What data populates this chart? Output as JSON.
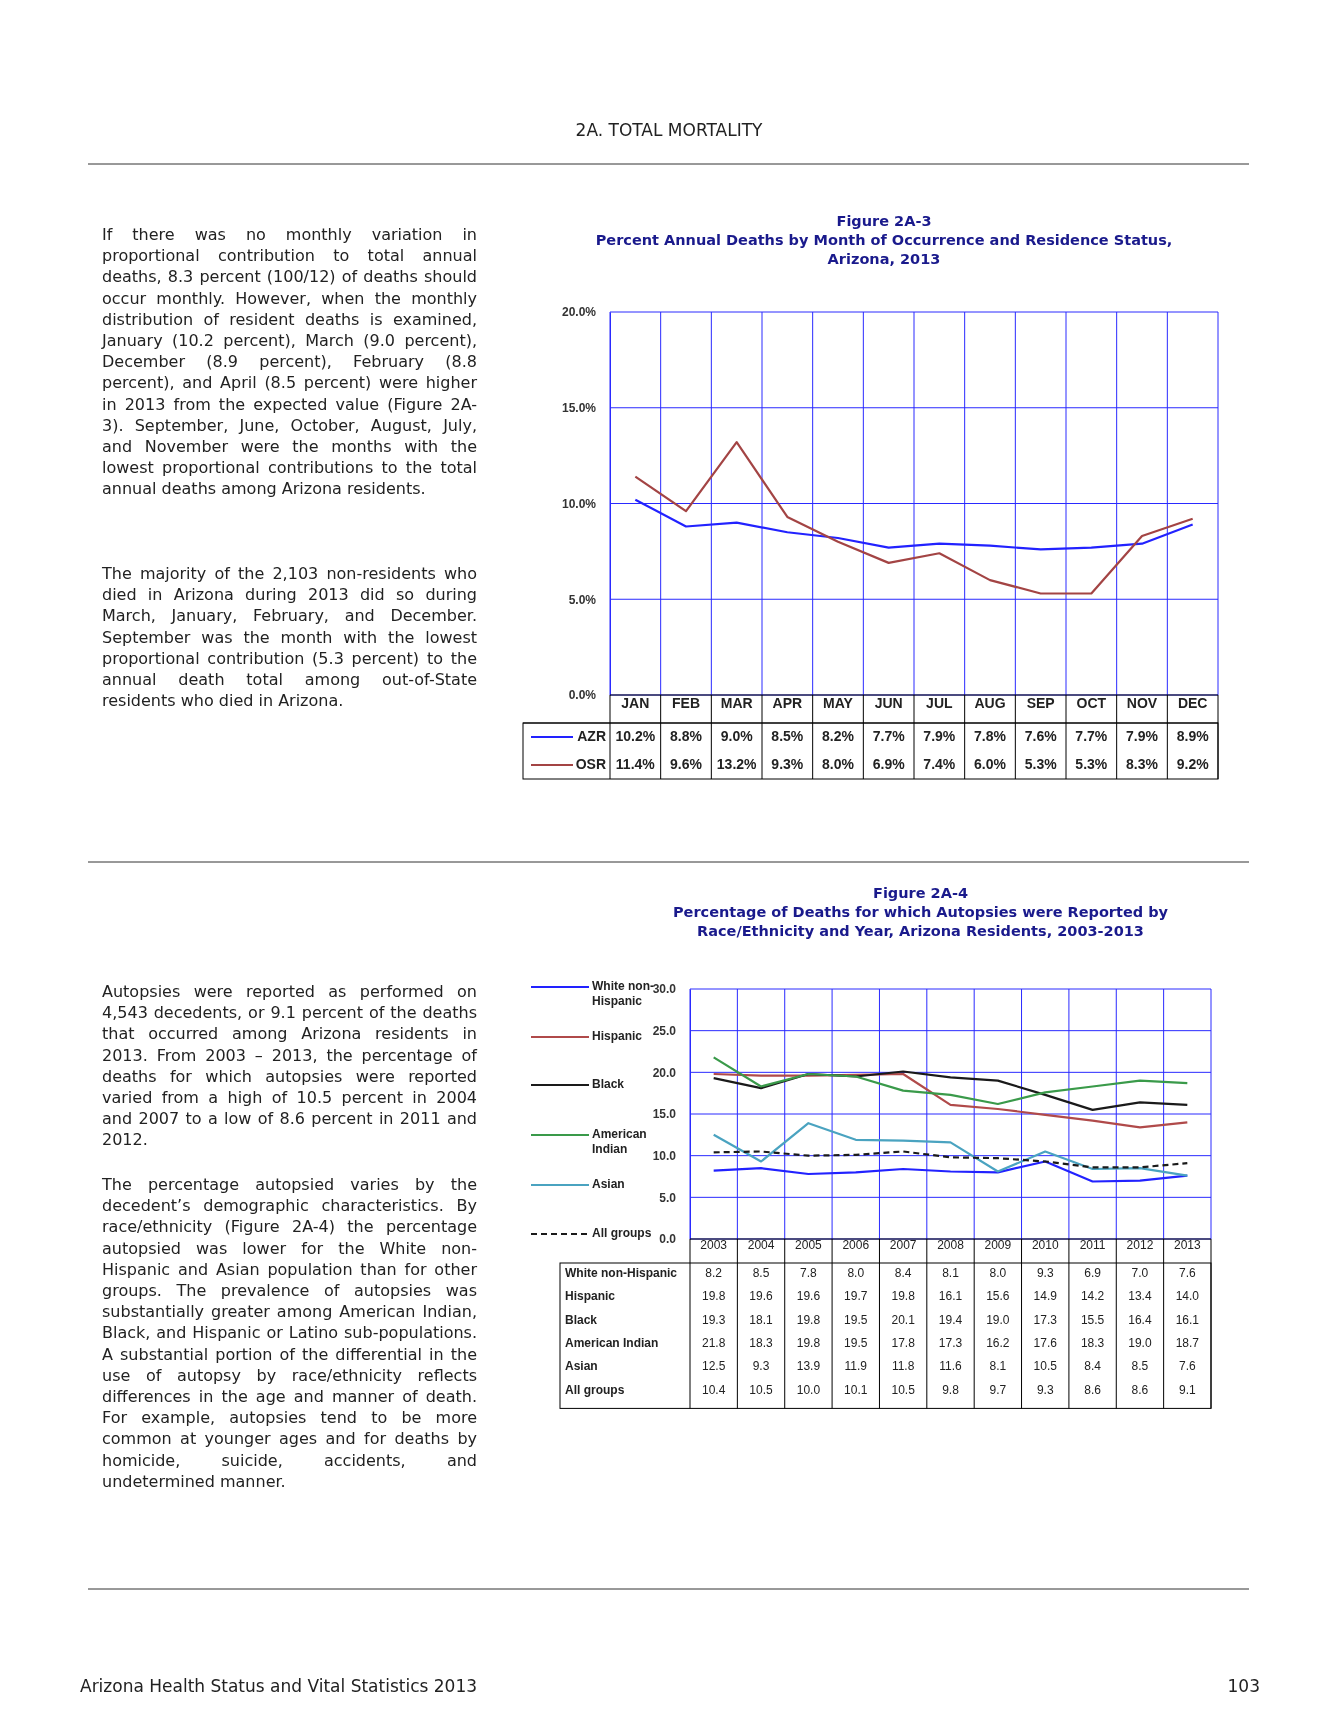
{
  "chart_data": [
    {
      "type": "line",
      "title": "Figure 2A-3",
      "subtitle": "Percent Annual Deaths by Month of Occurrence and Residence Status, Arizona, 2013",
      "annotations": [
        "2A. TOTAL MORTALITY",
        "If there was no monthly variation in proportional contribution to total annual deaths, 8.3 percent (100/12) of deaths should occur monthly. However, when the monthly distribution of resident deaths is examined, January (10.2 percent), March (9.0 percent), December (8.9 percent), February (8.8 percent), and April (8.5 percent) were higher in 2013 from the expected value (Figure 2A-3). September, June, October, August, July, and November were the months with the lowest proportional contributions to the total annual deaths among Arizona residents.",
        "The majority of the 2,103 non-residents who died in Arizona during 2013 did so during March, January, February, and December. September was the month with the lowest proportional contribution (5.3 percent) to the annual death total among out-of-State residents who died in Arizona."
      ],
      "categories": [
        "JAN",
        "FEB",
        "MAR",
        "APR",
        "MAY",
        "JUN",
        "JUL",
        "AUG",
        "SEP",
        "OCT",
        "NOV",
        "DEC"
      ],
      "series": [
        {
          "name": "AZR",
          "color": "#2222ff",
          "values": [
            10.2,
            8.8,
            9.0,
            8.5,
            8.2,
            7.7,
            7.9,
            7.8,
            7.6,
            7.7,
            7.9,
            8.9
          ],
          "value_labels": [
            "10.2%",
            "8.8%",
            "9.0%",
            "8.5%",
            "8.2%",
            "7.7%",
            "7.9%",
            "7.8%",
            "7.6%",
            "7.7%",
            "7.9%",
            "8.9%"
          ]
        },
        {
          "name": "OSR",
          "color": "#a34444",
          "values": [
            11.4,
            9.6,
            13.2,
            9.3,
            8.0,
            6.9,
            7.4,
            6.0,
            5.3,
            5.3,
            8.3,
            9.2
          ],
          "value_labels": [
            "11.4%",
            "9.6%",
            "13.2%",
            "9.3%",
            "8.0%",
            "6.9%",
            "7.4%",
            "6.0%",
            "5.3%",
            "5.3%",
            "8.3%",
            "9.2%"
          ]
        }
      ],
      "ylim": [
        0,
        20
      ],
      "yticks": [
        {
          "value": 0,
          "label": "0.0%"
        },
        {
          "value": 5,
          "label": "5.0%"
        },
        {
          "value": 10,
          "label": "10.0%"
        },
        {
          "value": 15,
          "label": "15.0%"
        },
        {
          "value": 20,
          "label": "20.0%"
        }
      ],
      "grid": true,
      "legend": "bottom left",
      "line_style": "solid"
    },
    {
      "type": "line",
      "title": "Figure 2A-4",
      "subtitle": "Percentage of Deaths for which Autopsies were Reported by Race/Ethnicity and Year, Arizona Residents, 2003-2013",
      "annotations": [
        "Autopsies were reported as performed on 4,543 decedents, or 9.1 percent of the deaths that occurred among Arizona residents in 2013. From 2003 – 2013, the percentage of deaths for which autopsies were reported varied from a high of 10.5 percent in 2004 and 2007 to a low of 8.6 percent in 2011 and 2012.",
        "The percentage autopsied varies by the decedent’s demographic characteristics. By race/ethnicity (Figure 2A-4) the percentage autopsied was lower for the White non-Hispanic and Asian population than for other groups. The prevalence of autopsies was substantially greater among American Indian, Black, and Hispanic or Latino sub-populations. A substantial portion of the differential in the use of autopsy by race/ethnicity reflects differences in the age and manner of death. For example, autopsies tend to be more common at younger ages and for deaths by homicide, suicide, accidents, and undetermined manner.",
        "Arizona Health Status and Vital Statistics  2013",
        "103"
      ],
      "categories": [
        "2003",
        "2004",
        "2005",
        "2006",
        "2007",
        "2008",
        "2009",
        "2010",
        "2011",
        "2012",
        "2013"
      ],
      "series": [
        {
          "name": "White non-Hispanic",
          "color": "#2222ff",
          "values": [
            8.2,
            8.5,
            7.8,
            8.0,
            8.4,
            8.1,
            8.0,
            9.3,
            6.9,
            7.0,
            7.6
          ],
          "value_labels": [
            "8.2",
            "8.5",
            "7.8",
            "8.0",
            "8.4",
            "8.1",
            "8.0",
            "9.3",
            "6.9",
            "7.0",
            "7.6"
          ]
        },
        {
          "name": "Hispanic",
          "color": "#b04a4a",
          "values": [
            19.8,
            19.6,
            19.6,
            19.7,
            19.8,
            16.1,
            15.6,
            14.9,
            14.2,
            13.4,
            14.0
          ],
          "value_labels": [
            "19.8",
            "19.6",
            "19.6",
            "19.7",
            "19.8",
            "16.1",
            "15.6",
            "14.9",
            "14.2",
            "13.4",
            "14.0"
          ]
        },
        {
          "name": "Black",
          "color": "#1a1a1a",
          "values": [
            19.3,
            18.1,
            19.8,
            19.5,
            20.1,
            19.4,
            19.0,
            17.3,
            15.5,
            16.4,
            16.1
          ],
          "value_labels": [
            "19.3",
            "18.1",
            "19.8",
            "19.5",
            "20.1",
            "19.4",
            "19.0",
            "17.3",
            "15.5",
            "16.4",
            "16.1"
          ]
        },
        {
          "name": "American Indian",
          "color": "#3a9a4a",
          "values": [
            21.8,
            18.3,
            19.8,
            19.5,
            17.8,
            17.3,
            16.2,
            17.6,
            18.3,
            19.0,
            18.7
          ],
          "value_labels": [
            "21.8",
            "18.3",
            "19.8",
            "19.5",
            "17.8",
            "17.3",
            "16.2",
            "17.6",
            "18.3",
            "19.0",
            "18.7"
          ]
        },
        {
          "name": "Asian",
          "color": "#4aa3c0",
          "values": [
            12.5,
            9.3,
            13.9,
            11.9,
            11.8,
            11.6,
            8.1,
            10.5,
            8.4,
            8.5,
            7.6
          ],
          "value_labels": [
            "12.5",
            "9.3",
            "13.9",
            "11.9",
            "11.8",
            "11.6",
            "8.1",
            "10.5",
            "8.4",
            "8.5",
            "7.6"
          ]
        },
        {
          "name": "All groups",
          "color": "#1a1a1a",
          "line_style": "dashed",
          "values": [
            10.4,
            10.5,
            10.0,
            10.1,
            10.5,
            9.8,
            9.7,
            9.3,
            8.6,
            8.6,
            9.1
          ],
          "value_labels": [
            "10.4",
            "10.5",
            "10.0",
            "10.1",
            "10.5",
            "9.8",
            "9.7",
            "9.3",
            "8.6",
            "8.6",
            "9.1"
          ]
        }
      ],
      "ylim": [
        0,
        30
      ],
      "yticks": [
        {
          "value": 0,
          "label": "0.0"
        },
        {
          "value": 5,
          "label": "5.0"
        },
        {
          "value": 10,
          "label": "10.0"
        },
        {
          "value": 15,
          "label": "15.0"
        },
        {
          "value": 20,
          "label": "20.0"
        },
        {
          "value": 25,
          "label": "25.0"
        },
        {
          "value": 30,
          "label": "30.0"
        }
      ],
      "grid": true,
      "legend": "left",
      "line_style": "solid"
    }
  ]
}
